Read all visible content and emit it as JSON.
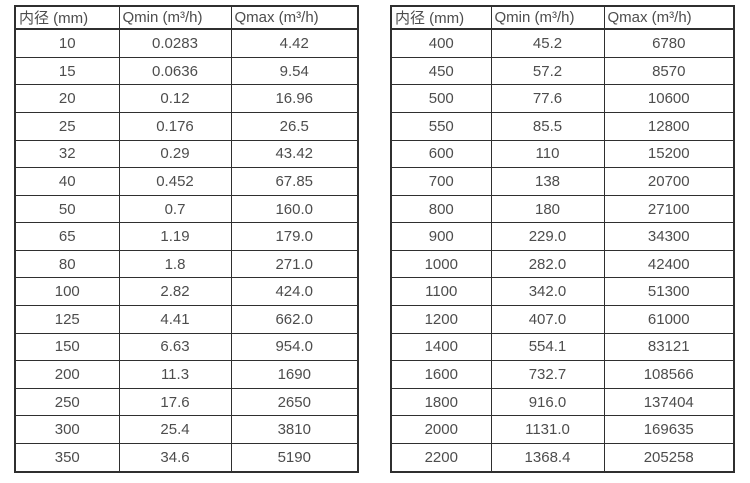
{
  "page": {
    "background_color": "#ffffff",
    "text_color": "#4d4d4d",
    "border_color": "#2f2f2f"
  },
  "tables": [
    {
      "name": "flow-rates-small-diameters",
      "headers": [
        "内径 (mm)",
        "Qmin (m³/h)",
        "Qmax (m³/h)"
      ],
      "rows": [
        [
          "10",
          "0.0283",
          "4.42"
        ],
        [
          "15",
          "0.0636",
          "9.54"
        ],
        [
          "20",
          "0.12",
          "16.96"
        ],
        [
          "25",
          "0.176",
          "26.5"
        ],
        [
          "32",
          "0.29",
          "43.42"
        ],
        [
          "40",
          "0.452",
          "67.85"
        ],
        [
          "50",
          "0.7",
          "160.0"
        ],
        [
          "65",
          "1.19",
          "179.0"
        ],
        [
          "80",
          "1.8",
          "271.0"
        ],
        [
          "100",
          "2.82",
          "424.0"
        ],
        [
          "125",
          "4.41",
          "662.0"
        ],
        [
          "150",
          "6.63",
          "954.0"
        ],
        [
          "200",
          "11.3",
          "1690"
        ],
        [
          "250",
          "17.6",
          "2650"
        ],
        [
          "300",
          "25.4",
          "3810"
        ],
        [
          "350",
          "34.6",
          "5190"
        ]
      ]
    },
    {
      "name": "flow-rates-large-diameters",
      "headers": [
        "内径 (mm)",
        "Qmin (m³/h)",
        "Qmax (m³/h)"
      ],
      "rows": [
        [
          "400",
          "45.2",
          "6780"
        ],
        [
          "450",
          "57.2",
          "8570"
        ],
        [
          "500",
          "77.6",
          "10600"
        ],
        [
          "550",
          "85.5",
          "12800"
        ],
        [
          "600",
          "110",
          "15200"
        ],
        [
          "700",
          "138",
          "20700"
        ],
        [
          "800",
          "180",
          "27100"
        ],
        [
          "900",
          "229.0",
          "34300"
        ],
        [
          "1000",
          "282.0",
          "42400"
        ],
        [
          "1100",
          "342.0",
          "51300"
        ],
        [
          "1200",
          "407.0",
          "61000"
        ],
        [
          "1400",
          "554.1",
          "83121"
        ],
        [
          "1600",
          "732.7",
          "108566"
        ],
        [
          "1800",
          "916.0",
          "137404"
        ],
        [
          "2000",
          "1131.0",
          "169635"
        ],
        [
          "2200",
          "1368.4",
          "205258"
        ]
      ]
    }
  ]
}
